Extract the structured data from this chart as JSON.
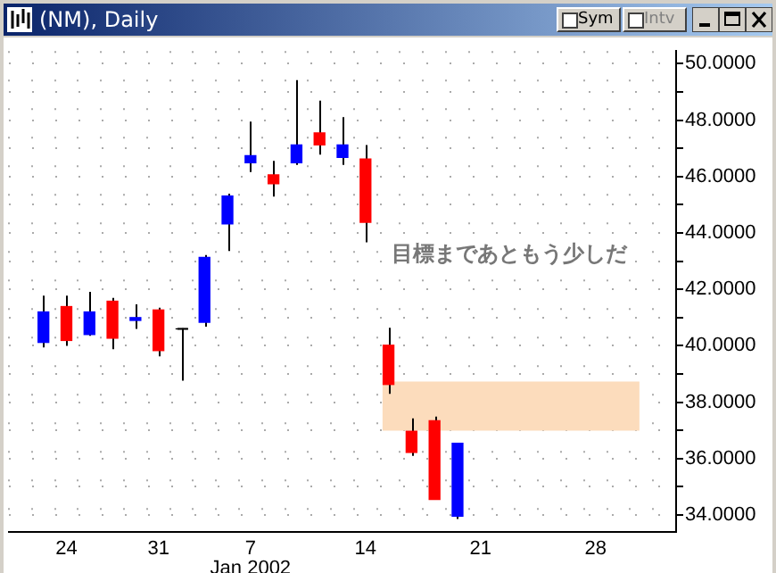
{
  "chart_data": {
    "type": "candlestick",
    "title": "(NM), Daily",
    "categories": [
      null,
      null,
      "24",
      null,
      null,
      null,
      "31",
      null,
      null,
      null,
      "7\nJan 2002",
      null,
      null,
      null,
      null,
      "14",
      null,
      null,
      null,
      null,
      "21",
      null,
      null,
      null,
      null,
      "28",
      null,
      null,
      null
    ],
    "ohlc": [
      null,
      [
        40.12,
        41.78,
        39.94,
        41.2
      ],
      [
        41.39,
        41.78,
        40.0,
        40.19
      ],
      [
        40.4,
        41.91,
        40.35,
        41.2
      ],
      [
        41.58,
        41.7,
        39.88,
        40.27
      ],
      [
        40.9,
        41.47,
        40.6,
        41.0
      ],
      [
        41.27,
        41.35,
        39.63,
        39.83
      ],
      [
        40.6,
        40.62,
        38.76,
        40.6
      ],
      [
        40.83,
        43.22,
        40.68,
        43.13
      ],
      [
        44.32,
        45.39,
        43.36,
        45.31
      ],
      [
        46.49,
        47.95,
        46.16,
        46.74
      ],
      [
        46.06,
        46.56,
        45.29,
        45.75
      ],
      [
        46.49,
        49.42,
        46.41,
        47.12
      ],
      [
        47.55,
        48.69,
        46.78,
        47.12
      ],
      [
        46.68,
        48.11,
        46.41,
        47.12
      ],
      [
        46.62,
        47.12,
        43.67,
        44.38
      ],
      [
        40.02,
        40.64,
        38.3,
        38.63
      ],
      [
        36.97,
        37.43,
        36.1,
        36.22
      ],
      [
        37.34,
        37.49,
        34.55,
        34.55
      ],
      [
        33.96,
        36.56,
        33.86,
        36.54
      ],
      null,
      null,
      null,
      null,
      null,
      null,
      null,
      null,
      null
    ],
    "colors": [
      null,
      "#0000ff",
      "#ff0000",
      "#0000ff",
      "#ff0000",
      "#0000ff",
      "#ff0000",
      "#000000",
      "#0000ff",
      "#0000ff",
      "#0000ff",
      "#ff0000",
      "#0000ff",
      "#ff0000",
      "#0000ff",
      "#ff0000",
      "#ff0000",
      "#ff0000",
      "#ff0000",
      "#0000ff",
      null,
      null,
      null,
      null,
      null,
      null,
      null,
      null,
      null
    ],
    "ylim": [
      33.4,
      50.45
    ],
    "yticks": [
      {
        "value": 34,
        "label": "34.0000"
      },
      {
        "value": 35,
        "label": null
      },
      {
        "value": 36,
        "label": "36.0000"
      },
      {
        "value": 37,
        "label": null
      },
      {
        "value": 38,
        "label": "38.0000"
      },
      {
        "value": 39,
        "label": null
      },
      {
        "value": 40,
        "label": "40.0000"
      },
      {
        "value": 41,
        "label": null
      },
      {
        "value": 42,
        "label": "42.0000"
      },
      {
        "value": 43,
        "label": null
      },
      {
        "value": 44,
        "label": "44.0000"
      },
      {
        "value": 45,
        "label": null
      },
      {
        "value": 46,
        "label": "46.0000"
      },
      {
        "value": 47,
        "label": null
      },
      {
        "value": 48,
        "label": "48.0000"
      },
      {
        "value": 49,
        "label": null
      },
      {
        "value": 50,
        "label": "50.0000"
      }
    ],
    "bands": [
      {
        "axis": "y",
        "from": 36.99,
        "to": 38.73,
        "color": "#fcdcbc"
      }
    ],
    "annotations": [
      "目標まであともう少しだ",
      "Sym",
      "Intv"
    ],
    "grid": true,
    "legend": false
  }
}
